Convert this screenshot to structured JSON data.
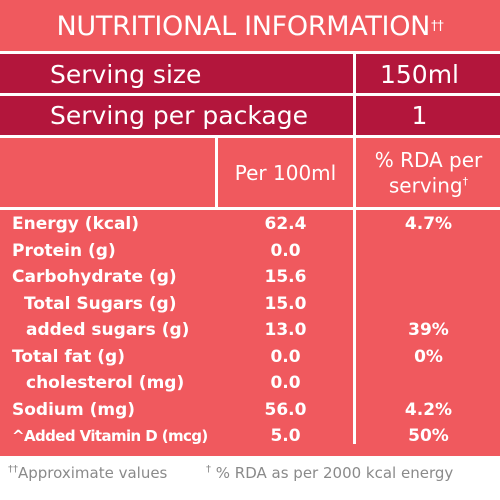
{
  "title": {
    "text": "NUTRITIONAL INFORMATION",
    "mark": "††"
  },
  "serving_size": {
    "label": "Serving size",
    "value": "150ml"
  },
  "serving_per_package": {
    "label": "Serving per package",
    "value": "1"
  },
  "columns": {
    "per_100ml": "Per 100ml",
    "rda_line1": "% RDA per",
    "rda_line2": "serving",
    "rda_mark": "†"
  },
  "rows": [
    {
      "label": "Energy (kcal)",
      "per100": "62.4",
      "rda": "4.7%"
    },
    {
      "label": "Protein (g)",
      "per100": "0.0",
      "rda": ""
    },
    {
      "label": "Carbohydrate (g)",
      "per100": "15.6",
      "rda": ""
    },
    {
      "label": "Total Sugars (g)",
      "per100": "15.0",
      "rda": ""
    },
    {
      "label": "added sugars (g)",
      "per100": "13.0",
      "rda": "39%"
    },
    {
      "label": "Total fat (g)",
      "per100": "0.0",
      "rda": "0%"
    },
    {
      "label": "cholesterol (mg)",
      "per100": "0.0",
      "rda": ""
    },
    {
      "label": "Sodium (mg)",
      "per100": "56.0",
      "rda": "4.2%"
    },
    {
      "label": "^Added Vitamin D (mcg)",
      "per100": "5.0",
      "rda": "50%"
    }
  ],
  "footer": {
    "mark1": "††",
    "note1": "Approximate values",
    "mark2": "†",
    "note2": " % RDA as per 2000 kcal energy"
  },
  "colors": {
    "panel": "#f0595e",
    "header_block": "#b3163c",
    "text": "#ffffff",
    "footer_text": "#8a8a8a"
  }
}
